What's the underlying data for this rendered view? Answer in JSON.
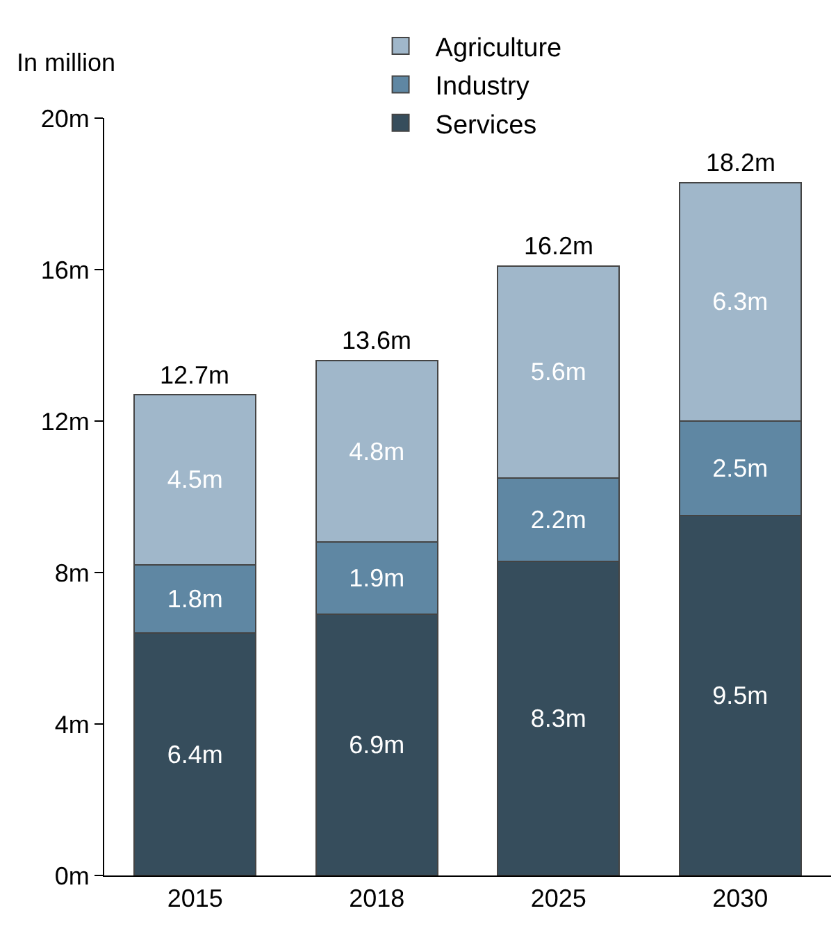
{
  "chart_data": {
    "type": "bar",
    "stacked": true,
    "ylabel": "In million",
    "categories": [
      "2015",
      "2018",
      "2025",
      "2030"
    ],
    "series": [
      {
        "name": "Services",
        "color": "#364d5c",
        "values": [
          6.4,
          6.9,
          8.3,
          9.5
        ],
        "value_labels": [
          "6.4m",
          "6.9m",
          "8.3m",
          "9.5m"
        ]
      },
      {
        "name": "Industry",
        "color": "#5f87a3",
        "values": [
          1.8,
          1.9,
          2.2,
          2.5
        ],
        "value_labels": [
          "1.8m",
          "1.9m",
          "2.2m",
          "2.5m"
        ]
      },
      {
        "name": "Agriculture",
        "color": "#a0b7ca",
        "values": [
          4.5,
          4.8,
          5.6,
          6.3
        ],
        "value_labels": [
          "4.5m",
          "4.8m",
          "5.6m",
          "6.3m"
        ]
      }
    ],
    "totals": [
      "12.7m",
      "13.6m",
      "16.2m",
      "18.2m"
    ],
    "ylim": [
      0,
      20
    ],
    "yticks": [
      {
        "value": 0,
        "label": "0m"
      },
      {
        "value": 4,
        "label": "4m"
      },
      {
        "value": 8,
        "label": "8m"
      },
      {
        "value": 12,
        "label": "12m"
      },
      {
        "value": 16,
        "label": "16m"
      },
      {
        "value": 20,
        "label": "20m"
      }
    ],
    "legend": "top"
  }
}
